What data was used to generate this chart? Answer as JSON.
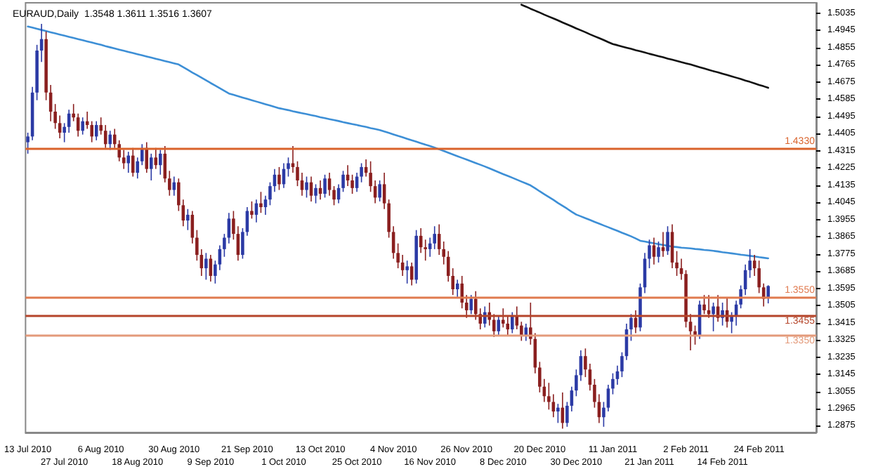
{
  "chart_data": {
    "type": "candlestick",
    "title": "EURAUD,Daily  1.3548 1.3611 1.3516 1.3607",
    "categories": [
      "13 Jul 2010",
      null,
      null,
      null,
      null,
      null,
      null,
      null,
      "27 Jul 2010",
      null,
      null,
      null,
      null,
      null,
      null,
      null,
      "6 Aug 2010",
      null,
      null,
      null,
      null,
      null,
      null,
      null,
      "18 Aug 2010",
      null,
      null,
      null,
      null,
      null,
      null,
      null,
      "30 Aug 2010",
      null,
      null,
      null,
      null,
      null,
      null,
      null,
      "9 Sep 2010",
      null,
      null,
      null,
      null,
      null,
      null,
      null,
      "21 Sep 2010",
      null,
      null,
      null,
      null,
      null,
      null,
      null,
      "1 Oct 2010",
      null,
      null,
      null,
      null,
      null,
      null,
      null,
      "13 Oct 2010",
      null,
      null,
      null,
      null,
      null,
      null,
      null,
      "25 Oct 2010",
      null,
      null,
      null,
      null,
      null,
      null,
      null,
      "4 Nov 2010",
      null,
      null,
      null,
      null,
      null,
      null,
      null,
      "16 Nov 2010",
      null,
      null,
      null,
      null,
      null,
      null,
      null,
      "26 Nov 2010",
      null,
      null,
      null,
      null,
      null,
      null,
      null,
      "8 Dec 2010",
      null,
      null,
      null,
      null,
      null,
      null,
      null,
      "20 Dec 2010",
      null,
      null,
      null,
      null,
      null,
      null,
      null,
      "30 Dec 2010",
      null,
      null,
      null,
      null,
      null,
      null,
      null,
      "11 Jan 2011",
      null,
      null,
      null,
      null,
      null,
      null,
      null,
      "21 Jan 2011",
      null,
      null,
      null,
      null,
      null,
      null,
      null,
      "2 Feb 2011",
      null,
      null,
      null,
      null,
      null,
      null,
      null,
      "14 Feb 2011",
      null,
      null,
      null,
      null,
      null,
      null,
      null,
      "24 Feb 2011",
      null,
      null,
      null,
      null,
      null,
      null,
      null,
      null,
      null,
      null,
      null,
      null
    ],
    "ohlc": [
      [
        1.436,
        1.441,
        1.43,
        1.439
      ],
      [
        1.439,
        1.465,
        1.437,
        1.462
      ],
      [
        1.462,
        1.487,
        1.458,
        1.484
      ],
      [
        1.484,
        1.498,
        1.478,
        1.49
      ],
      [
        1.49,
        1.494,
        1.458,
        1.462
      ],
      [
        1.462,
        1.466,
        1.447,
        1.452
      ],
      [
        1.452,
        1.456,
        1.443,
        1.446
      ],
      [
        1.446,
        1.45,
        1.438,
        1.441
      ],
      [
        1.441,
        1.446,
        1.436,
        1.444
      ],
      [
        1.444,
        1.453,
        1.441,
        1.451
      ],
      [
        1.451,
        1.456,
        1.447,
        1.449
      ],
      [
        1.449,
        1.451,
        1.439,
        1.442
      ],
      [
        1.442,
        1.449,
        1.44,
        1.447
      ],
      [
        1.447,
        1.452,
        1.443,
        1.445
      ],
      [
        1.445,
        1.447,
        1.436,
        1.439
      ],
      [
        1.439,
        1.447,
        1.437,
        1.445
      ],
      [
        1.445,
        1.449,
        1.44,
        1.442
      ],
      [
        1.442,
        1.445,
        1.433,
        1.435
      ],
      [
        1.435,
        1.442,
        1.432,
        1.44
      ],
      [
        1.44,
        1.443,
        1.433,
        1.435
      ],
      [
        1.435,
        1.437,
        1.426,
        1.428
      ],
      [
        1.428,
        1.432,
        1.422,
        1.425
      ],
      [
        1.425,
        1.431,
        1.42,
        1.429
      ],
      [
        1.429,
        1.433,
        1.418,
        1.42
      ],
      [
        1.42,
        1.428,
        1.417,
        1.426
      ],
      [
        1.426,
        1.435,
        1.424,
        1.433
      ],
      [
        1.433,
        1.436,
        1.42,
        1.422
      ],
      [
        1.422,
        1.43,
        1.416,
        1.428
      ],
      [
        1.428,
        1.433,
        1.422,
        1.424
      ],
      [
        1.424,
        1.432,
        1.419,
        1.43
      ],
      [
        1.43,
        1.434,
        1.415,
        1.417
      ],
      [
        1.417,
        1.421,
        1.408,
        1.411
      ],
      [
        1.411,
        1.418,
        1.408,
        1.415
      ],
      [
        1.415,
        1.417,
        1.4,
        1.403
      ],
      [
        1.403,
        1.406,
        1.392,
        1.395
      ],
      [
        1.395,
        1.401,
        1.39,
        1.398
      ],
      [
        1.398,
        1.4,
        1.383,
        1.386
      ],
      [
        1.386,
        1.39,
        1.374,
        1.377
      ],
      [
        1.377,
        1.38,
        1.366,
        1.37
      ],
      [
        1.37,
        1.378,
        1.364,
        1.375
      ],
      [
        1.375,
        1.377,
        1.363,
        1.366
      ],
      [
        1.366,
        1.374,
        1.362,
        1.372
      ],
      [
        1.372,
        1.382,
        1.369,
        1.38
      ],
      [
        1.38,
        1.388,
        1.376,
        1.386
      ],
      [
        1.386,
        1.399,
        1.383,
        1.396
      ],
      [
        1.396,
        1.4,
        1.385,
        1.388
      ],
      [
        1.388,
        1.392,
        1.374,
        1.377
      ],
      [
        1.377,
        1.391,
        1.375,
        1.389
      ],
      [
        1.389,
        1.402,
        1.387,
        1.4
      ],
      [
        1.4,
        1.405,
        1.396,
        1.398
      ],
      [
        1.398,
        1.406,
        1.394,
        1.404
      ],
      [
        1.404,
        1.41,
        1.399,
        1.402
      ],
      [
        1.402,
        1.408,
        1.398,
        1.406
      ],
      [
        1.406,
        1.415,
        1.403,
        1.413
      ],
      [
        1.413,
        1.422,
        1.41,
        1.419
      ],
      [
        1.419,
        1.423,
        1.411,
        1.414
      ],
      [
        1.414,
        1.425,
        1.412,
        1.422
      ],
      [
        1.422,
        1.428,
        1.418,
        1.425
      ],
      [
        1.425,
        1.434,
        1.42,
        1.423
      ],
      [
        1.423,
        1.426,
        1.413,
        1.416
      ],
      [
        1.416,
        1.42,
        1.408,
        1.411
      ],
      [
        1.411,
        1.418,
        1.407,
        1.415
      ],
      [
        1.415,
        1.418,
        1.405,
        1.408
      ],
      [
        1.408,
        1.414,
        1.404,
        1.412
      ],
      [
        1.412,
        1.416,
        1.406,
        1.409
      ],
      [
        1.409,
        1.419,
        1.407,
        1.417
      ],
      [
        1.417,
        1.42,
        1.408,
        1.411
      ],
      [
        1.411,
        1.413,
        1.403,
        1.406
      ],
      [
        1.406,
        1.414,
        1.404,
        1.412
      ],
      [
        1.412,
        1.421,
        1.41,
        1.419
      ],
      [
        1.419,
        1.424,
        1.413,
        1.416
      ],
      [
        1.416,
        1.419,
        1.409,
        1.412
      ],
      [
        1.412,
        1.42,
        1.41,
        1.418
      ],
      [
        1.418,
        1.425,
        1.415,
        1.423
      ],
      [
        1.423,
        1.427,
        1.418,
        1.42
      ],
      [
        1.42,
        1.426,
        1.41,
        1.413
      ],
      [
        1.413,
        1.416,
        1.404,
        1.407
      ],
      [
        1.407,
        1.416,
        1.405,
        1.414
      ],
      [
        1.414,
        1.42,
        1.401,
        1.404
      ],
      [
        1.404,
        1.406,
        1.386,
        1.389
      ],
      [
        1.389,
        1.392,
        1.375,
        1.378
      ],
      [
        1.378,
        1.383,
        1.37,
        1.373
      ],
      [
        1.373,
        1.377,
        1.366,
        1.369
      ],
      [
        1.369,
        1.374,
        1.362,
        1.371
      ],
      [
        1.371,
        1.373,
        1.361,
        1.364
      ],
      [
        1.364,
        1.39,
        1.362,
        1.387
      ],
      [
        1.387,
        1.391,
        1.378,
        1.381
      ],
      [
        1.381,
        1.385,
        1.374,
        1.38
      ],
      [
        1.38,
        1.386,
        1.376,
        1.383
      ],
      [
        1.383,
        1.392,
        1.38,
        1.388
      ],
      [
        1.388,
        1.393,
        1.377,
        1.38
      ],
      [
        1.38,
        1.384,
        1.372,
        1.376
      ],
      [
        1.376,
        1.379,
        1.363,
        1.366
      ],
      [
        1.366,
        1.37,
        1.356,
        1.359
      ],
      [
        1.359,
        1.364,
        1.355,
        1.362
      ],
      [
        1.362,
        1.366,
        1.349,
        1.352
      ],
      [
        1.352,
        1.356,
        1.344,
        1.348
      ],
      [
        1.348,
        1.356,
        1.346,
        1.354
      ],
      [
        1.354,
        1.358,
        1.343,
        1.346
      ],
      [
        1.346,
        1.349,
        1.338,
        1.341
      ],
      [
        1.341,
        1.35,
        1.339,
        1.347
      ],
      [
        1.347,
        1.352,
        1.34,
        1.343
      ],
      [
        1.343,
        1.346,
        1.334,
        1.337
      ],
      [
        1.337,
        1.345,
        1.335,
        1.343
      ],
      [
        1.343,
        1.349,
        1.339,
        1.341
      ],
      [
        1.341,
        1.345,
        1.335,
        1.338
      ],
      [
        1.338,
        1.347,
        1.336,
        1.345
      ],
      [
        1.345,
        1.35,
        1.338,
        1.34
      ],
      [
        1.34,
        1.342,
        1.332,
        1.335
      ],
      [
        1.335,
        1.341,
        1.332,
        1.339
      ],
      [
        1.339,
        1.352,
        1.33,
        1.333
      ],
      [
        1.333,
        1.336,
        1.315,
        1.318
      ],
      [
        1.318,
        1.321,
        1.305,
        1.308
      ],
      [
        1.308,
        1.312,
        1.3,
        1.303
      ],
      [
        1.303,
        1.31,
        1.296,
        1.3
      ],
      [
        1.3,
        1.304,
        1.292,
        1.295
      ],
      [
        1.295,
        1.299,
        1.289,
        1.297
      ],
      [
        1.297,
        1.305,
        1.286,
        1.289
      ],
      [
        1.289,
        1.3,
        1.287,
        1.298
      ],
      [
        1.298,
        1.308,
        1.295,
        1.306
      ],
      [
        1.306,
        1.317,
        1.303,
        1.314
      ],
      [
        1.314,
        1.327,
        1.311,
        1.324
      ],
      [
        1.324,
        1.328,
        1.313,
        1.317
      ],
      [
        1.317,
        1.32,
        1.306,
        1.309
      ],
      [
        1.309,
        1.312,
        1.297,
        1.3
      ],
      [
        1.3,
        1.304,
        1.289,
        1.292
      ],
      [
        1.292,
        1.3,
        1.287,
        1.297
      ],
      [
        1.297,
        1.309,
        1.295,
        1.307
      ],
      [
        1.307,
        1.315,
        1.304,
        1.312
      ],
      [
        1.312,
        1.319,
        1.309,
        1.316
      ],
      [
        1.316,
        1.326,
        1.313,
        1.324
      ],
      [
        1.324,
        1.341,
        1.322,
        1.338
      ],
      [
        1.338,
        1.346,
        1.332,
        1.344
      ],
      [
        1.344,
        1.348,
        1.336,
        1.339
      ],
      [
        1.339,
        1.362,
        1.337,
        1.36
      ],
      [
        1.36,
        1.378,
        1.357,
        1.375
      ],
      [
        1.375,
        1.385,
        1.37,
        1.382
      ],
      [
        1.382,
        1.386,
        1.372,
        1.376
      ],
      [
        1.376,
        1.384,
        1.373,
        1.381
      ],
      [
        1.381,
        1.389,
        1.376,
        1.379
      ],
      [
        1.379,
        1.392,
        1.377,
        1.389
      ],
      [
        1.389,
        1.393,
        1.37,
        1.373
      ],
      [
        1.373,
        1.379,
        1.366,
        1.37
      ],
      [
        1.37,
        1.375,
        1.364,
        1.367
      ],
      [
        1.367,
        1.369,
        1.339,
        1.342
      ],
      [
        1.342,
        1.346,
        1.327,
        1.337
      ],
      [
        1.337,
        1.34,
        1.33,
        1.335
      ],
      [
        1.335,
        1.353,
        1.333,
        1.351
      ],
      [
        1.351,
        1.356,
        1.346,
        1.348
      ],
      [
        1.348,
        1.356,
        1.344,
        1.346
      ],
      [
        1.346,
        1.352,
        1.337,
        1.35
      ],
      [
        1.35,
        1.356,
        1.342,
        1.344
      ],
      [
        1.344,
        1.352,
        1.34,
        1.348
      ],
      [
        1.348,
        1.355,
        1.339,
        1.342
      ],
      [
        1.342,
        1.347,
        1.336,
        1.345
      ],
      [
        1.345,
        1.353,
        1.34,
        1.351
      ],
      [
        1.351,
        1.361,
        1.349,
        1.359
      ],
      [
        1.359,
        1.372,
        1.356,
        1.369
      ],
      [
        1.369,
        1.38,
        1.365,
        1.374
      ],
      [
        1.374,
        1.377,
        1.366,
        1.37
      ],
      [
        1.37,
        1.374,
        1.357,
        1.36
      ],
      [
        1.36,
        1.362,
        1.35,
        1.354
      ],
      [
        1.3548,
        1.3611,
        1.3516,
        1.3607
      ],
      null,
      null,
      null,
      null,
      null,
      null,
      null,
      null,
      null,
      null
    ],
    "colors": [
      "#2b3aa5",
      "#2b3aa5",
      "#2b3aa5",
      "#2b3aa5",
      "#8a1f1f",
      "#8a1f1f",
      "#8a1f1f",
      "#8a1f1f",
      "#2b3aa5",
      "#2b3aa5",
      "#8a1f1f",
      "#8a1f1f",
      "#2b3aa5",
      "#8a1f1f",
      "#8a1f1f",
      "#2b3aa5",
      "#8a1f1f",
      "#8a1f1f",
      "#2b3aa5",
      "#8a1f1f",
      "#8a1f1f",
      "#8a1f1f",
      "#2b3aa5",
      "#8a1f1f",
      "#2b3aa5",
      "#2b3aa5",
      "#8a1f1f",
      "#2b3aa5",
      "#8a1f1f",
      "#2b3aa5",
      "#8a1f1f",
      "#8a1f1f",
      "#2b3aa5",
      "#8a1f1f",
      "#8a1f1f",
      "#2b3aa5",
      "#8a1f1f",
      "#8a1f1f",
      "#8a1f1f",
      "#2b3aa5",
      "#8a1f1f",
      "#2b3aa5",
      "#2b3aa5",
      "#2b3aa5",
      "#2b3aa5",
      "#8a1f1f",
      "#8a1f1f",
      "#2b3aa5",
      "#2b3aa5",
      "#8a1f1f",
      "#2b3aa5",
      "#8a1f1f",
      "#2b3aa5",
      "#2b3aa5",
      "#2b3aa5",
      "#8a1f1f",
      "#2b3aa5",
      "#2b3aa5",
      "#8a1f1f",
      "#8a1f1f",
      "#8a1f1f",
      "#2b3aa5",
      "#8a1f1f",
      "#2b3aa5",
      "#8a1f1f",
      "#2b3aa5",
      "#8a1f1f",
      "#8a1f1f",
      "#2b3aa5",
      "#2b3aa5",
      "#8a1f1f",
      "#8a1f1f",
      "#2b3aa5",
      "#2b3aa5",
      "#8a1f1f",
      "#8a1f1f",
      "#8a1f1f",
      "#2b3aa5",
      "#8a1f1f",
      "#8a1f1f",
      "#8a1f1f",
      "#8a1f1f",
      "#8a1f1f",
      "#2b3aa5",
      "#8a1f1f",
      "#2b3aa5",
      "#8a1f1f",
      "#8a1f1f",
      "#2b3aa5",
      "#2b3aa5",
      "#8a1f1f",
      "#8a1f1f",
      "#8a1f1f",
      "#8a1f1f",
      "#2b3aa5",
      "#8a1f1f",
      "#8a1f1f",
      "#2b3aa5",
      "#8a1f1f",
      "#8a1f1f",
      "#2b3aa5",
      "#8a1f1f",
      "#8a1f1f",
      "#2b3aa5",
      "#8a1f1f",
      "#8a1f1f",
      "#2b3aa5",
      "#8a1f1f",
      "#8a1f1f",
      "#2b3aa5",
      "#8a1f1f",
      "#8a1f1f",
      "#8a1f1f",
      "#8a1f1f",
      "#8a1f1f",
      "#8a1f1f",
      "#2b3aa5",
      "#8a1f1f",
      "#2b3aa5",
      "#2b3aa5",
      "#2b3aa5",
      "#2b3aa5",
      "#8a1f1f",
      "#8a1f1f",
      "#8a1f1f",
      "#8a1f1f",
      "#2b3aa5",
      "#2b3aa5",
      "#2b3aa5",
      "#2b3aa5",
      "#2b3aa5",
      "#2b3aa5",
      "#2b3aa5",
      "#8a1f1f",
      "#2b3aa5",
      "#2b3aa5",
      "#2b3aa5",
      "#8a1f1f",
      "#2b3aa5",
      "#8a1f1f",
      "#2b3aa5",
      "#8a1f1f",
      "#8a1f1f",
      "#8a1f1f",
      "#8a1f1f",
      "#8a1f1f",
      "#8a1f1f",
      "#2b3aa5",
      "#8a1f1f",
      "#8a1f1f",
      "#2b3aa5",
      "#8a1f1f",
      "#2b3aa5",
      "#8a1f1f",
      "#2b3aa5",
      "#2b3aa5",
      "#2b3aa5",
      "#2b3aa5",
      "#2b3aa5",
      "#8a1f1f",
      "#8a1f1f",
      "#8a1f1f",
      "#2b3aa5",
      null,
      null,
      null,
      null,
      null,
      null,
      null,
      null,
      null,
      null
    ],
    "series": [
      {
        "type": "line",
        "color": "#3d8fd6",
        "values": [
          1.4966,
          1.496,
          1.4954,
          1.4948,
          1.4942,
          1.4936,
          1.493,
          1.4924,
          1.4918,
          1.4912,
          1.4906,
          1.49,
          1.4894,
          1.4888,
          1.4882,
          1.4876,
          1.487,
          1.4863,
          1.4857,
          1.4851,
          1.4845,
          1.4839,
          1.4833,
          1.4827,
          1.4821,
          1.4815,
          1.4809,
          1.4803,
          1.4797,
          1.4791,
          1.4785,
          1.4779,
          1.4773,
          1.4767,
          1.4753,
          1.4739,
          1.4725,
          1.4712,
          1.4698,
          1.4684,
          1.467,
          1.4657,
          1.4643,
          1.4629,
          1.4615,
          1.4608,
          1.4601,
          1.4594,
          1.4587,
          1.458,
          1.4573,
          1.4566,
          1.4559,
          1.4552,
          1.4545,
          1.4538,
          1.4533,
          1.4528,
          1.4522,
          1.4517,
          1.4512,
          1.4507,
          1.4502,
          1.4497,
          1.4491,
          1.4486,
          1.4481,
          1.4476,
          1.4471,
          1.4465,
          1.446,
          1.4455,
          1.445,
          1.4445,
          1.444,
          1.4434,
          1.4429,
          1.4424,
          1.4416,
          1.4409,
          1.4401,
          1.4393,
          1.4386,
          1.4378,
          1.437,
          1.4363,
          1.4355,
          1.4347,
          1.434,
          1.4332,
          1.4323,
          1.4314,
          1.4305,
          1.4296,
          1.4287,
          1.4278,
          1.4269,
          1.426,
          1.4251,
          1.4242,
          1.4233,
          1.4223,
          1.4213,
          1.4203,
          1.4193,
          1.4184,
          1.4174,
          1.4164,
          1.4154,
          1.4144,
          1.4134,
          1.4119,
          1.4103,
          1.4088,
          1.4073,
          1.4058,
          1.4042,
          1.4027,
          1.4012,
          1.3996,
          1.3981,
          1.3972,
          1.3962,
          1.3953,
          1.3943,
          1.3934,
          1.3924,
          1.3915,
          1.3905,
          1.3896,
          1.3886,
          1.3877,
          1.3867,
          1.3856,
          1.3844,
          1.384,
          1.3835,
          1.3831,
          1.3826,
          1.3822,
          1.3818,
          1.3813,
          1.3811,
          1.3808,
          1.3806,
          1.3804,
          1.3801,
          1.3799,
          1.3796,
          1.3794,
          1.3791,
          1.3788,
          1.3784,
          1.3781,
          1.3778,
          1.3775,
          1.3771,
          1.3768,
          1.3765,
          1.3762,
          1.3758,
          1.3755,
          1.3752,
          null,
          null,
          null,
          null,
          null,
          null,
          null,
          null,
          null,
          null
        ]
      },
      {
        "type": "line",
        "color": "#111111",
        "values": [
          null,
          null,
          null,
          null,
          null,
          null,
          null,
          null,
          null,
          null,
          null,
          null,
          null,
          null,
          null,
          null,
          null,
          null,
          null,
          null,
          null,
          null,
          null,
          null,
          null,
          null,
          null,
          null,
          null,
          null,
          null,
          null,
          null,
          null,
          null,
          null,
          null,
          null,
          null,
          null,
          null,
          null,
          null,
          null,
          null,
          null,
          null,
          null,
          null,
          null,
          null,
          null,
          null,
          null,
          null,
          null,
          null,
          null,
          null,
          null,
          null,
          null,
          null,
          null,
          null,
          null,
          null,
          null,
          null,
          null,
          null,
          null,
          null,
          null,
          null,
          null,
          null,
          null,
          null,
          null,
          null,
          null,
          null,
          null,
          null,
          null,
          null,
          null,
          null,
          null,
          null,
          null,
          null,
          null,
          null,
          null,
          null,
          null,
          null,
          null,
          null,
          null,
          null,
          null,
          null,
          null,
          null,
          null,
          1.508,
          1.507,
          1.5059,
          1.5049,
          1.5039,
          1.5028,
          1.5018,
          1.5008,
          1.4998,
          1.4987,
          1.4977,
          1.4967,
          1.4956,
          1.4946,
          1.4936,
          1.4925,
          1.4915,
          1.4905,
          1.4895,
          1.4884,
          1.4874,
          1.4868,
          1.4861,
          1.4855,
          1.4849,
          1.4842,
          1.4836,
          1.483,
          1.4823,
          1.4817,
          1.4811,
          1.4805,
          1.4798,
          1.4792,
          1.4786,
          1.4779,
          1.4773,
          1.4767,
          1.476,
          1.4753,
          1.4746,
          1.4739,
          1.4732,
          1.4726,
          1.4719,
          1.4712,
          1.4705,
          1.4698,
          1.4691,
          1.4683,
          1.4676,
          1.4668,
          1.466,
          1.4653,
          1.4645,
          null,
          null,
          null,
          null,
          null,
          null,
          null,
          null,
          null,
          null
        ]
      }
    ],
    "ylim": [
      1.284,
      1.509
    ],
    "yticks": [
      1.2875,
      1.2965,
      1.3055,
      1.3145,
      1.3235,
      1.3325,
      1.3415,
      1.3505,
      1.3595,
      1.3685,
      1.3775,
      1.3865,
      1.3955,
      1.4045,
      1.4135,
      1.4225,
      1.4315,
      1.4405,
      1.4495,
      1.4585,
      1.4675,
      1.4765,
      1.4855,
      1.4945,
      1.5035
    ],
    "ref_lines": [
      {
        "axis": "y",
        "value": 1.433,
        "label": "1.4330",
        "color": "#d9622b"
      },
      {
        "axis": "y",
        "value": 1.355,
        "label": "1.3550",
        "color": "#e07a4f"
      },
      {
        "axis": "y",
        "value": 1.3455,
        "label": "1.3455",
        "color": "#b5452a"
      },
      {
        "axis": "y",
        "value": 1.335,
        "label": "1.3350",
        "color": "#e39a7a"
      }
    ],
    "marker": "none",
    "line_style": "solid",
    "grid": false
  }
}
